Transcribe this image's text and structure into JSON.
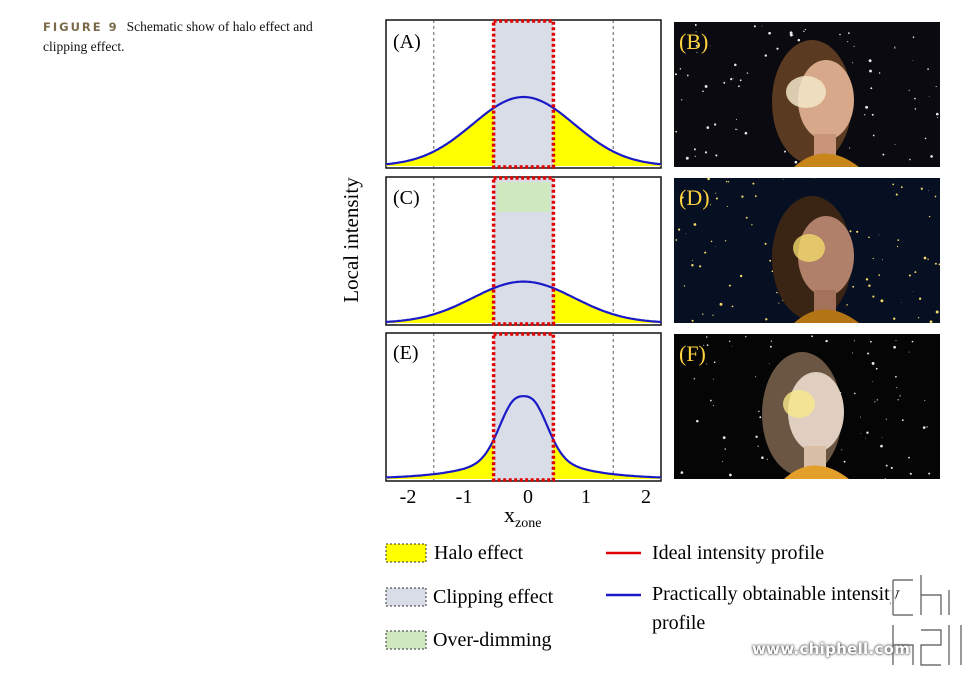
{
  "caption": {
    "figure_label": "FIGURE 9",
    "text": "Schematic show of halo effect and clipping effect."
  },
  "chart_data": [
    {
      "type": "line",
      "panel": "(A)",
      "series": [
        {
          "name": "Practically obtainable intensity profile",
          "shape": "gaussian",
          "peak": 0.5,
          "sigma": 0.85
        }
      ],
      "clipping_zone": [
        -0.5,
        0.5
      ],
      "over_dimming": false
    },
    {
      "type": "line",
      "panel": "(C)",
      "series": [
        {
          "name": "Practically obtainable intensity profile",
          "shape": "gaussian",
          "peak": 0.3,
          "sigma": 0.85
        }
      ],
      "clipping_zone": [
        -0.5,
        0.5
      ],
      "over_dimming": true
    },
    {
      "type": "line",
      "panel": "(E)",
      "series": [
        {
          "name": "Practically obtainable intensity profile",
          "shape": "narrow-peak",
          "peak": 0.6,
          "sigma": 0.3
        }
      ],
      "clipping_zone": [
        -0.5,
        0.5
      ],
      "over_dimming": false
    }
  ],
  "axes": {
    "ylabel": "Local intensity",
    "xlabel": "x",
    "xlabel_sub": "zone",
    "xticks": [
      "-2",
      "-1",
      "0",
      "1",
      "2"
    ],
    "xlim": [
      -2.3,
      2.3
    ]
  },
  "photo_labels": [
    "(B)",
    "(D)",
    "(F)"
  ],
  "legend": {
    "halo": "Halo effect",
    "clipping": "Clipping effect",
    "overdimming": "Over-dimming",
    "ideal": "Ideal intensity profile",
    "practical_line1": "Practically obtainable intensity",
    "practical_line2": "profile"
  },
  "colors": {
    "halo": "#ffff00",
    "clipping": "#d9dde8",
    "overdimming": "#cfe8c0",
    "ideal": "#e00000",
    "practical": "#1a1ac8"
  },
  "watermark": {
    "url": "www.chiphell.com",
    "logo": "chip hell"
  }
}
